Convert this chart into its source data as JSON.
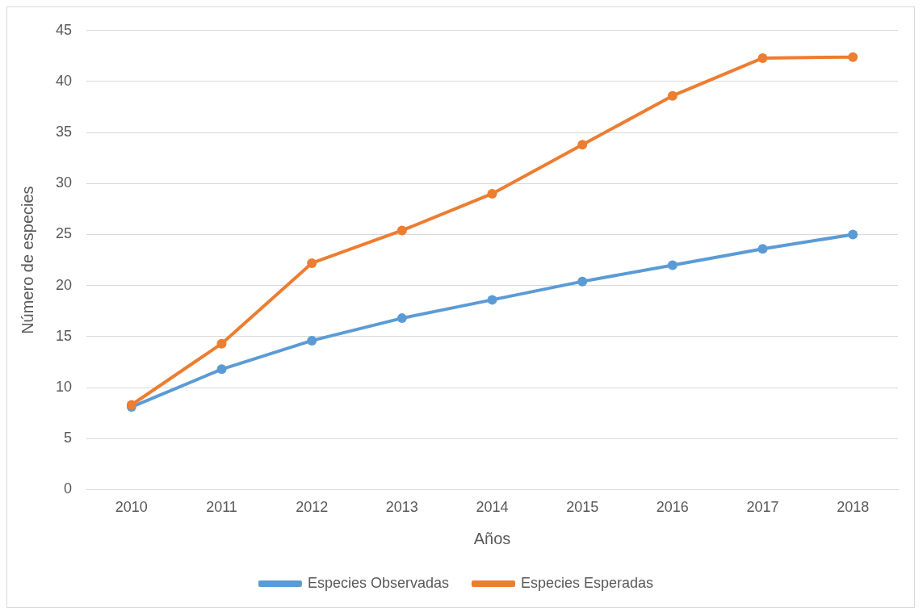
{
  "chart_data": {
    "type": "line",
    "xlabel": "Años",
    "ylabel": "Número de especies",
    "categories": [
      "2010",
      "2011",
      "2012",
      "2013",
      "2014",
      "2015",
      "2016",
      "2017",
      "2018"
    ],
    "series": [
      {
        "name": "Especies Observadas",
        "color": "#5b9bd5",
        "values": [
          8.1,
          11.8,
          14.6,
          16.8,
          18.6,
          20.4,
          22.0,
          23.6,
          25.0
        ]
      },
      {
        "name": "Especies Esperadas",
        "color": "#ed7d31",
        "values": [
          8.3,
          14.3,
          22.2,
          25.4,
          29.0,
          33.8,
          38.6,
          42.3,
          42.4
        ]
      }
    ],
    "ylim": [
      0,
      45
    ],
    "yticks": [
      0,
      5,
      10,
      15,
      20,
      25,
      30,
      35,
      40,
      45
    ],
    "grid": "y",
    "legend": "bottom",
    "marker": "circle",
    "line_style": "solid"
  }
}
